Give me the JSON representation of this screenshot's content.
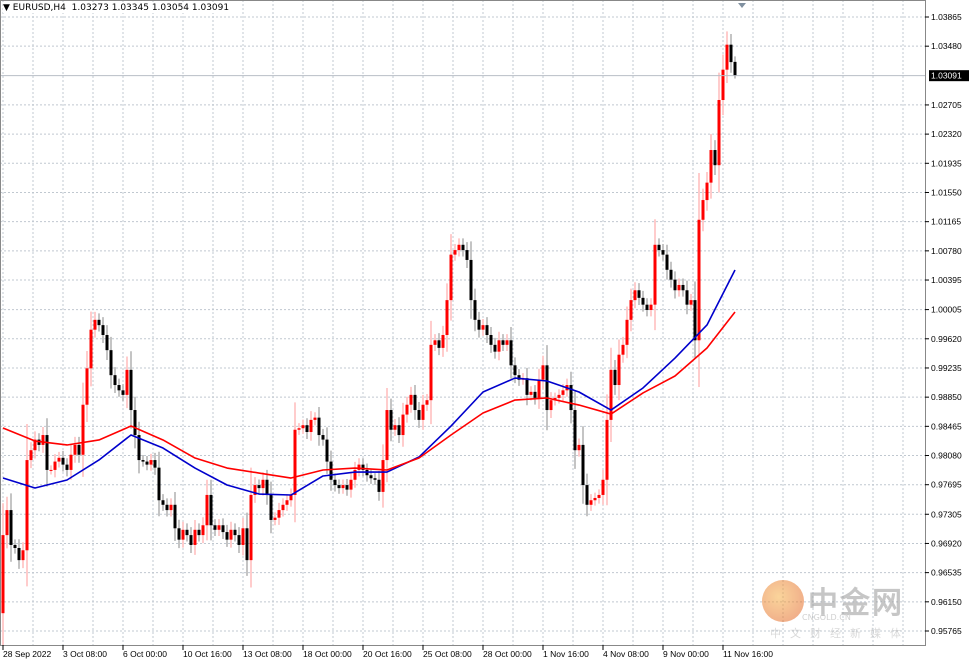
{
  "header": {
    "symbol": "EURUSD,H4",
    "ohlc": "1.03273 1.03345 1.03054 1.03091"
  },
  "colors": {
    "bull": "#ff0000",
    "bear": "#000000",
    "ma_fast": "#0000cc",
    "ma_slow": "#ff0000",
    "grid": "#c0c8d0"
  },
  "watermark": {
    "logo_text": "中金网",
    "domain": "CNGOLD.CN",
    "tagline": "中文财经新媒体"
  },
  "chart_data": {
    "type": "candlestick",
    "title": "EURUSD,H4",
    "grid": true,
    "ylim": [
      0.95765,
      1.03865
    ],
    "y_ticks": [
      "1.03865",
      "1.03480",
      "1.02705",
      "1.02320",
      "1.01935",
      "1.01550",
      "1.01165",
      "1.00780",
      "1.00395",
      "1.00005",
      "0.99620",
      "0.99235",
      "0.98850",
      "0.98465",
      "0.98080",
      "0.97695",
      "0.97305",
      "0.96920",
      "0.96535",
      "0.96150",
      "0.95765"
    ],
    "current_price": "1.03091",
    "x_ticks": [
      "28 Sep 2022",
      "3 Oct 08:00",
      "6 Oct 00:00",
      "10 Oct 16:00",
      "13 Oct 08:00",
      "18 Oct 00:00",
      "20 Oct 16:00",
      "25 Oct 08:00",
      "28 Oct 00:00",
      "1 Nov 16:00",
      "4 Nov 08:00",
      "9 Nov 00:00",
      "11 Nov 16:00"
    ],
    "first_open": 0.96,
    "last_candle": {
      "open": 1.03273,
      "high": 1.03345,
      "low": 1.03054,
      "close": 1.03091
    },
    "closes": [
      0.9703,
      0.9736,
      0.969,
      0.9686,
      0.967,
      0.9683,
      0.9802,
      0.9815,
      0.9829,
      0.9822,
      0.9835,
      0.9789,
      0.9789,
      0.98,
      0.9805,
      0.9796,
      0.9789,
      0.9809,
      0.9822,
      0.9809,
      0.9875,
      0.9923,
      0.9974,
      0.9987,
      0.998,
      0.9967,
      0.9947,
      0.9914,
      0.9901,
      0.9894,
      0.9888,
      0.9921,
      0.9868,
      0.9835,
      0.9802,
      0.98,
      0.9796,
      0.9802,
      0.9792,
      0.9749,
      0.9743,
      0.9736,
      0.9743,
      0.9712,
      0.9697,
      0.971,
      0.9703,
      0.969,
      0.971,
      0.9703,
      0.9716,
      0.9756,
      0.9716,
      0.971,
      0.9716,
      0.9707,
      0.9697,
      0.971,
      0.9703,
      0.969,
      0.9712,
      0.967,
      0.9756,
      0.9769,
      0.9765,
      0.9776,
      0.9756,
      0.9723,
      0.9726,
      0.9736,
      0.9743,
      0.9749,
      0.9756,
      0.9842,
      0.9844,
      0.9848,
      0.9839,
      0.9855,
      0.9858,
      0.9835,
      0.9829,
      0.98,
      0.9776,
      0.9769,
      0.9765,
      0.9769,
      0.9763,
      0.9776,
      0.9789,
      0.9796,
      0.9789,
      0.9782,
      0.9778,
      0.9776,
      0.976,
      0.9802,
      0.9868,
      0.9842,
      0.9848,
      0.9835,
      0.9862,
      0.9875,
      0.9888,
      0.9868,
      0.9855,
      0.9875,
      0.9881,
      0.9954,
      0.996,
      0.995,
      0.9967,
      1.0013,
      1.0073,
      1.0079,
      1.0086,
      1.0079,
      1.0066,
      1.0013,
      0.9987,
      0.9974,
      0.998,
      0.9967,
      0.9954,
      0.9945,
      0.996,
      0.9954,
      0.996,
      0.9927,
      0.9914,
      0.9908,
      0.991,
      0.9888,
      0.9892,
      0.9884,
      0.9908,
      0.9927,
      0.9868,
      0.9881,
      0.9884,
      0.9888,
      0.9894,
      0.9901,
      0.9868,
      0.9815,
      0.9822,
      0.9769,
      0.9743,
      0.9749,
      0.9752,
      0.9756,
      0.9776,
      0.9855,
      0.9921,
      0.9901,
      0.9941,
      0.9954,
      0.9987,
      1.0013,
      1.0026,
      1.0016,
      1.0007,
      1.0,
      1.0007,
      1.0086,
      1.0079,
      1.0073,
      1.0053,
      1.004,
      1.0026,
      1.0033,
      1.0026,
      1.0007,
      1.0013,
      0.996,
      1.0119,
      1.0145,
      1.0168,
      1.0211,
      1.0191,
      1.0277,
      1.0317,
      1.035,
      1.0327,
      1.03091
    ],
    "ma_sample_bars": [
      0,
      8,
      16,
      24,
      32,
      40,
      48,
      56,
      64,
      72,
      80,
      88,
      96,
      104,
      112,
      120,
      128,
      136,
      144,
      152,
      160,
      168,
      176,
      183
    ],
    "series": [
      {
        "values": [
          0.97783,
          0.97651,
          0.97757,
          0.98021,
          0.98351,
          0.98179,
          0.97915,
          0.97691,
          0.97572,
          0.97559,
          0.9781,
          0.97862,
          0.97862,
          0.9806,
          0.98469,
          0.98918,
          0.99102,
          0.99063,
          0.98918,
          0.9868,
          0.98971,
          0.99366,
          0.99802,
          1.00527
        ]
      },
      {
        "values": [
          0.98443,
          0.98271,
          0.98219,
          0.98285,
          0.98469,
          0.98285,
          0.98047,
          0.97915,
          0.97849,
          0.97783,
          0.97889,
          0.97915,
          0.97889,
          0.98047,
          0.98351,
          0.98641,
          0.98812,
          0.98839,
          0.98746,
          0.98627,
          0.98905,
          0.99129,
          0.99498,
          0.99973
        ]
      }
    ]
  }
}
